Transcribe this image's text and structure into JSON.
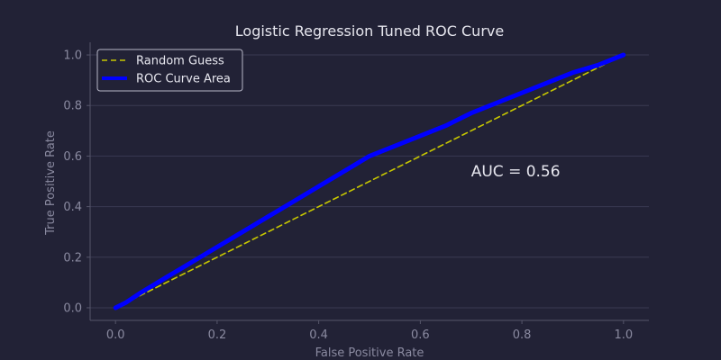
{
  "chart_data": {
    "type": "line",
    "title": "Logistic Regression Tuned ROC Curve",
    "xlabel": "False Positive Rate",
    "ylabel": "True Positive Rate",
    "xlim": [
      -0.05,
      1.05
    ],
    "ylim": [
      -0.05,
      1.05
    ],
    "xticks": [
      "0.0",
      "0.2",
      "0.4",
      "0.6",
      "0.8",
      "1.0"
    ],
    "yticks": [
      "0.0",
      "0.2",
      "0.4",
      "0.6",
      "0.8",
      "1.0"
    ],
    "grid": "horizontal",
    "legend_position": "top-left",
    "series": [
      {
        "name": "Random Guess",
        "color": "#c8c800",
        "style": "dashed",
        "x": [
          0,
          1
        ],
        "y": [
          0,
          1
        ]
      },
      {
        "name": "ROC Curve Area",
        "color": "#0000ff",
        "style": "solid",
        "x": [
          0,
          0.02,
          0.05,
          0.1,
          0.15,
          0.2,
          0.25,
          0.3,
          0.35,
          0.4,
          0.45,
          0.5,
          0.55,
          0.6,
          0.65,
          0.7,
          0.75,
          0.8,
          0.85,
          0.9,
          0.95,
          1.0
        ],
        "y": [
          0,
          0.02,
          0.06,
          0.12,
          0.18,
          0.24,
          0.3,
          0.36,
          0.42,
          0.48,
          0.54,
          0.6,
          0.64,
          0.68,
          0.72,
          0.77,
          0.81,
          0.85,
          0.89,
          0.93,
          0.96,
          1.0
        ]
      }
    ],
    "annotations": [
      {
        "text": "AUC = 0.56",
        "x": 0.7,
        "y": 0.52
      }
    ]
  }
}
